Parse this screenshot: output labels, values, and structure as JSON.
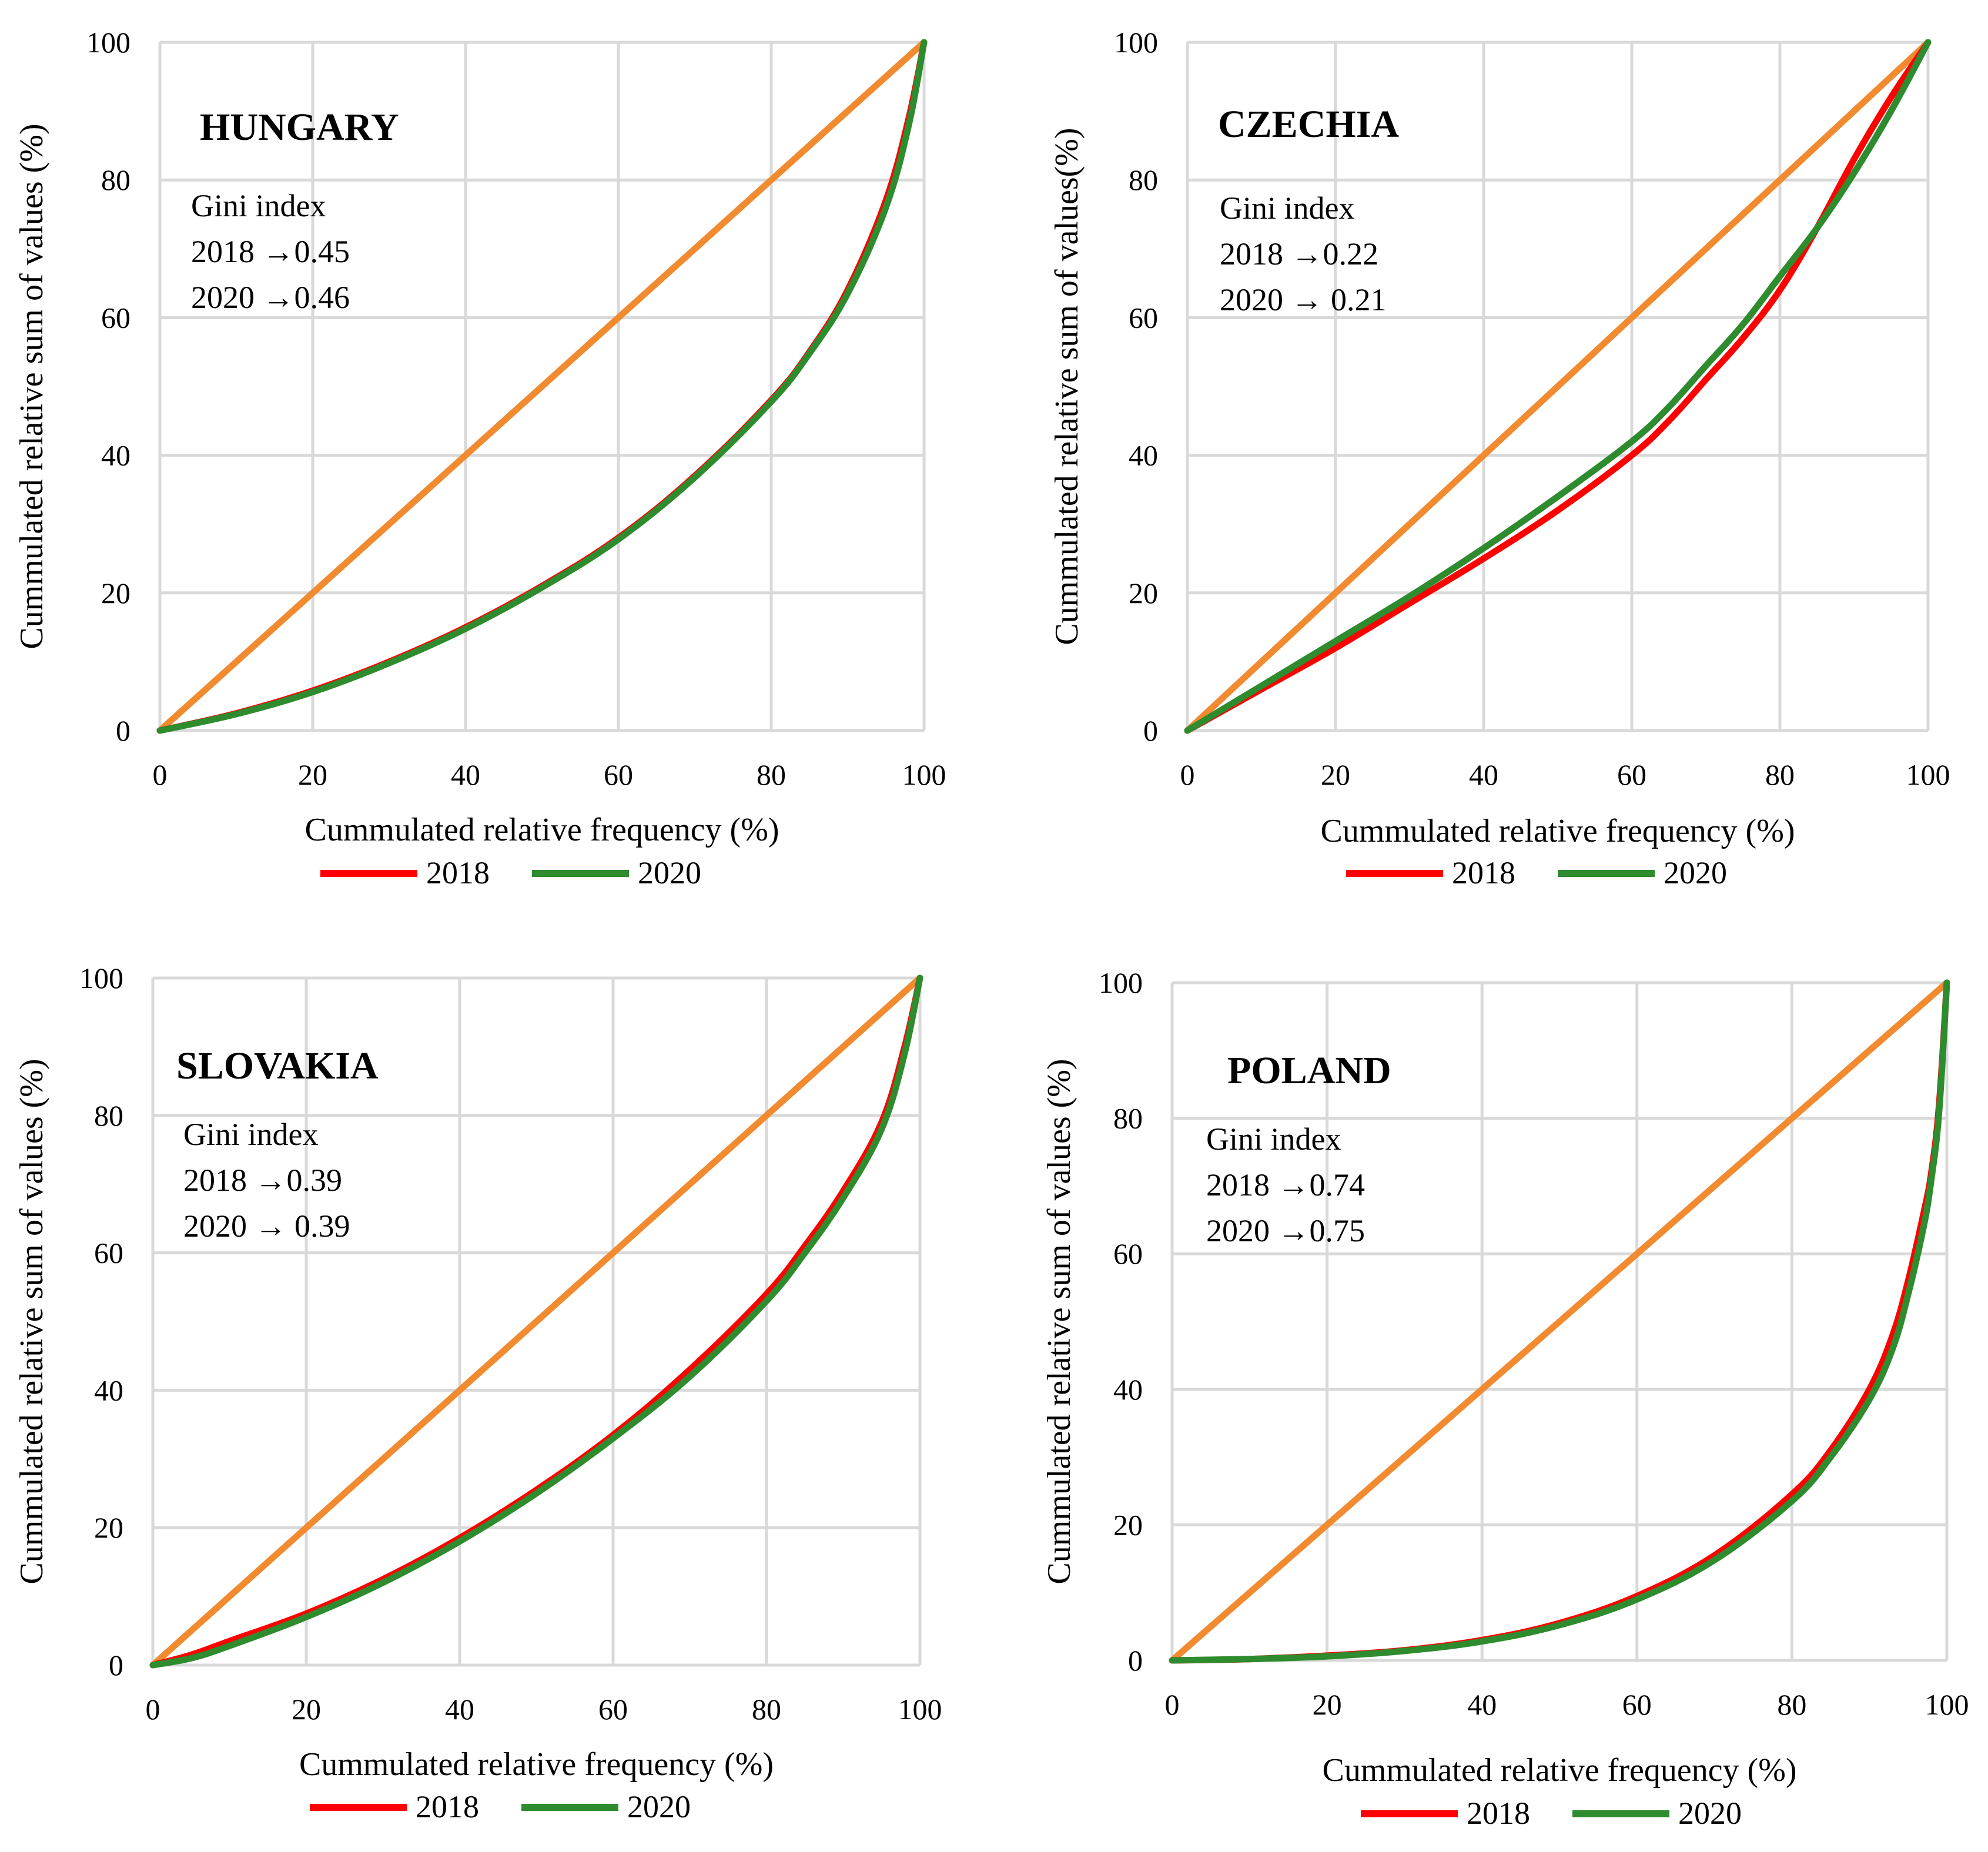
{
  "colors": {
    "equality": "#f28a30",
    "s2018": "#ff0000",
    "s2020": "#2e8b2e",
    "grid": "#d9d9d9"
  },
  "chart_data": [
    {
      "type": "line",
      "country": "HUNGARY",
      "annotation": [
        "Gini index",
        "2018 →0.45",
        "2020 →0.46"
      ],
      "xlabel": "Cummulated relative frequency (%)",
      "ylabel": "Cummulated relative sum of values (%)",
      "xlim": [
        0,
        100
      ],
      "ylim": [
        0,
        100
      ],
      "xticks": [
        "0",
        "20",
        "40",
        "60",
        "80",
        "100"
      ],
      "yticks": [
        "0",
        "20",
        "40",
        "60",
        "80",
        "100"
      ],
      "legend": [
        "2018",
        "2020"
      ],
      "equality": {
        "x": [
          0,
          100
        ],
        "y": [
          0,
          100
        ]
      },
      "series": [
        {
          "name": "2018",
          "x": [
            0,
            10,
            20,
            30,
            40,
            50,
            60,
            70,
            80,
            85,
            90,
            95,
            98,
            100
          ],
          "y": [
            0,
            2.5,
            5.8,
            10,
            15,
            21,
            28,
            37,
            48,
            55,
            64,
            77,
            89,
            100
          ]
        },
        {
          "name": "2020",
          "x": [
            0,
            10,
            20,
            30,
            40,
            50,
            60,
            70,
            80,
            85,
            90,
            95,
            98,
            100
          ],
          "y": [
            0,
            2.4,
            5.6,
            9.8,
            14.8,
            20.8,
            27.8,
            36.8,
            47.8,
            54.8,
            63.5,
            76,
            88,
            100
          ]
        }
      ]
    },
    {
      "type": "line",
      "country": "CZECHIA",
      "annotation": [
        "Gini index",
        "2018 →0.22",
        "2020 → 0.21"
      ],
      "xlabel": "Cummulated relative frequency (%)",
      "ylabel": "Cummulated relative sum of values(%)",
      "xlim": [
        0,
        100
      ],
      "ylim": [
        0,
        100
      ],
      "xticks": [
        "0",
        "20",
        "40",
        "60",
        "80",
        "100"
      ],
      "yticks": [
        "0",
        "20",
        "40",
        "60",
        "80",
        "100"
      ],
      "legend": [
        "2018",
        "2020"
      ],
      "equality": {
        "x": [
          0,
          100
        ],
        "y": [
          0,
          100
        ]
      },
      "series": [
        {
          "name": "2018",
          "x": [
            0,
            10,
            20,
            30,
            40,
            50,
            60,
            65,
            70,
            75,
            80,
            85,
            90,
            95,
            100
          ],
          "y": [
            0,
            6,
            12,
            18.5,
            25,
            32,
            40,
            45,
            51,
            57,
            64,
            73,
            83,
            92,
            100
          ]
        },
        {
          "name": "2020",
          "x": [
            0,
            10,
            20,
            30,
            40,
            50,
            60,
            65,
            70,
            75,
            80,
            85,
            90,
            95,
            100
          ],
          "y": [
            0,
            6.5,
            13,
            19.5,
            26.5,
            34,
            42,
            47,
            53,
            59,
            66,
            73,
            81,
            90,
            100
          ]
        }
      ]
    },
    {
      "type": "line",
      "country": "SLOVAKIA",
      "annotation": [
        "Gini index",
        "2018 →0.39",
        "2020 → 0.39"
      ],
      "xlabel": "Cummulated relative frequency (%)",
      "ylabel": "Cummulated relative sum of values (%)",
      "xlim": [
        0,
        100
      ],
      "ylim": [
        0,
        100
      ],
      "xticks": [
        "0",
        "20",
        "40",
        "60",
        "80",
        "100"
      ],
      "yticks": [
        "0",
        "20",
        "40",
        "60",
        "80",
        "100"
      ],
      "legend": [
        "2018",
        "2020"
      ],
      "equality": {
        "x": [
          0,
          100
        ],
        "y": [
          0,
          100
        ]
      },
      "series": [
        {
          "name": "2018",
          "x": [
            0,
            5,
            10,
            20,
            30,
            40,
            50,
            60,
            70,
            80,
            85,
            90,
            95,
            98,
            100
          ],
          "y": [
            0,
            1.5,
            3.5,
            7.5,
            12.5,
            18.5,
            25.5,
            33.5,
            43,
            54,
            61,
            69,
            79,
            90,
            100
          ]
        },
        {
          "name": "2020",
          "x": [
            0,
            5,
            10,
            20,
            30,
            40,
            50,
            60,
            70,
            80,
            85,
            90,
            95,
            98,
            100
          ],
          "y": [
            0,
            1,
            2.8,
            7,
            12,
            18,
            25,
            33,
            42,
            53,
            60,
            68,
            78,
            89,
            100
          ]
        }
      ]
    },
    {
      "type": "line",
      "country": "POLAND",
      "annotation": [
        "Gini index",
        "2018 →0.74",
        "2020 →0.75"
      ],
      "xlabel": "Cummulated relative frequency (%)",
      "ylabel": "Cummulated relative sum of values (%)",
      "xlim": [
        0,
        100
      ],
      "ylim": [
        0,
        100
      ],
      "xticks": [
        "0",
        "20",
        "40",
        "60",
        "80",
        "100"
      ],
      "yticks": [
        "0",
        "20",
        "40",
        "60",
        "80",
        "100"
      ],
      "legend": [
        "2018",
        "2020"
      ],
      "equality": {
        "x": [
          0,
          100
        ],
        "y": [
          0,
          100
        ]
      },
      "series": [
        {
          "name": "2018",
          "x": [
            0,
            10,
            20,
            30,
            40,
            50,
            60,
            70,
            80,
            85,
            90,
            93,
            95,
            97,
            98,
            99,
            100
          ],
          "y": [
            0,
            0.2,
            0.7,
            1.5,
            3,
            5.5,
            9.5,
            15.5,
            24.5,
            31,
            40,
            48,
            56,
            66,
            72,
            82,
            100
          ]
        },
        {
          "name": "2020",
          "x": [
            0,
            10,
            20,
            30,
            40,
            50,
            60,
            70,
            80,
            85,
            90,
            93,
            95,
            97,
            98,
            99,
            100
          ],
          "y": [
            0,
            0.2,
            0.6,
            1.4,
            2.8,
            5.2,
            9,
            14.8,
            23.5,
            30,
            38.5,
            46,
            54,
            64,
            71,
            81,
            100
          ]
        }
      ]
    }
  ]
}
